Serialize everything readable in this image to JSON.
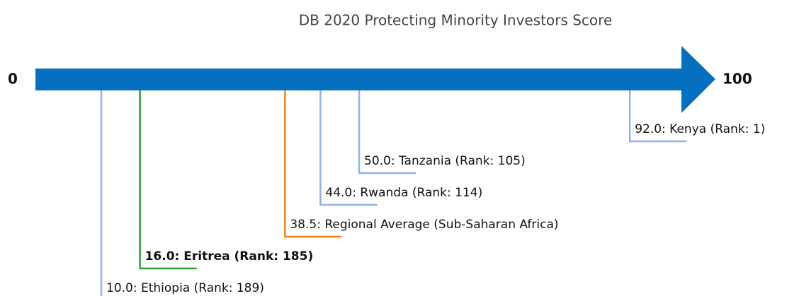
{
  "chart_data": {
    "type": "scale",
    "title": "DB 2020 Protecting Minority Investors Score",
    "xlim": [
      0,
      100
    ],
    "xticks": [
      0,
      100
    ],
    "arrow_color": "#0570c0",
    "values": [
      92,
      50,
      44,
      38.5,
      16,
      10
    ],
    "value_labels": [
      "92.0: Kenya (Rank: 1)",
      "50.0: Tanzania (Rank: 105)",
      "44.0: Rwanda (Rank: 114)",
      "38.5: Regional Average (Sub-Saharan Africa)",
      "16.0: Eritrea (Rank: 185)",
      "10.0: Ethiopia (Rank: 189)"
    ],
    "colors": [
      "#8fb4e8",
      "#8fb4e8",
      "#8fb4e8",
      "#ff7f0e",
      "#2ca02c",
      "#8fb4e8"
    ],
    "bold": [
      false,
      false,
      false,
      false,
      true,
      false
    ]
  }
}
